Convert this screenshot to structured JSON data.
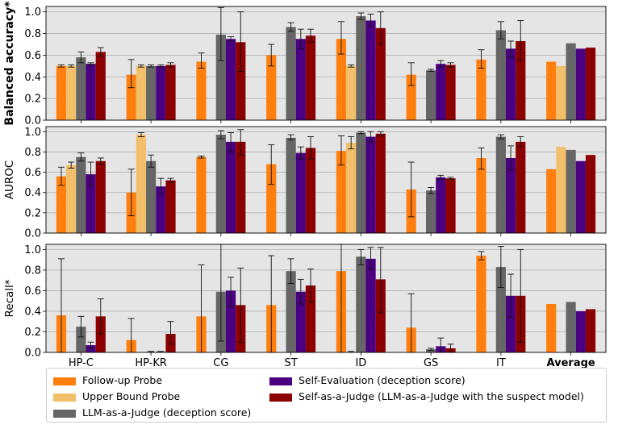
{
  "chart_data": {
    "type": "bar",
    "categories": [
      "HP-C",
      "HP-KR",
      "CG",
      "ST",
      "ID",
      "GS",
      "IT",
      "Average"
    ],
    "series_meta": [
      {
        "name": "Follow-up Probe",
        "color": "#ff7f0e"
      },
      {
        "name": "Upper Bound Probe",
        "color": "#f2c06a"
      },
      {
        "name": "LLM-as-a-Judge (deception score)",
        "color": "#666666"
      },
      {
        "name": "Self-Evaluation (deception score)",
        "color": "#4b0082"
      },
      {
        "name": "Self-as-a-Judge (LLM-as-a-Judge with the suspect model)",
        "color": "#8b0000"
      }
    ],
    "panels": [
      {
        "ylabel": "Balanced accuracy*",
        "ylim": [
          0,
          1.05
        ],
        "yticks": [
          0.0,
          0.2,
          0.4,
          0.6,
          0.8,
          1.0
        ],
        "grid": true,
        "values": [
          [
            0.5,
            0.42,
            0.54,
            0.6,
            0.75,
            0.42,
            0.56,
            0.54
          ],
          [
            0.5,
            0.5,
            null,
            null,
            0.5,
            null,
            null,
            0.5
          ],
          [
            0.58,
            0.5,
            0.79,
            0.86,
            0.96,
            0.46,
            0.83,
            0.71
          ],
          [
            0.52,
            0.5,
            0.75,
            0.75,
            0.92,
            0.52,
            0.66,
            0.66
          ],
          [
            0.63,
            0.51,
            0.72,
            0.78,
            0.85,
            0.51,
            0.73,
            0.67
          ]
        ],
        "errors": [
          [
            [
              0.49,
              0.51
            ],
            [
              0.3,
              0.56
            ],
            [
              0.48,
              0.62
            ],
            [
              0.5,
              0.7
            ],
            [
              0.61,
              0.91
            ],
            [
              0.32,
              0.53
            ],
            [
              0.48,
              0.65
            ],
            null
          ],
          [
            [
              0.49,
              0.51
            ],
            [
              0.49,
              0.51
            ],
            null,
            null,
            [
              0.49,
              0.51
            ],
            null,
            null,
            null
          ],
          [
            [
              0.53,
              0.63
            ],
            [
              0.49,
              0.51
            ],
            [
              0.55,
              1.04
            ],
            [
              0.82,
              0.9
            ],
            [
              0.93,
              0.99
            ],
            [
              0.45,
              0.47
            ],
            [
              0.75,
              0.91
            ],
            null
          ],
          [
            [
              0.51,
              0.53
            ],
            [
              0.49,
              0.51
            ],
            [
              0.73,
              0.77
            ],
            [
              0.66,
              0.84
            ],
            [
              0.87,
              0.98
            ],
            [
              0.49,
              0.55
            ],
            [
              0.58,
              0.73
            ],
            null
          ],
          [
            [
              0.59,
              0.67
            ],
            [
              0.49,
              0.53
            ],
            [
              0.45,
              1.0
            ],
            [
              0.72,
              0.84
            ],
            [
              0.7,
              1.0
            ],
            [
              0.49,
              0.53
            ],
            [
              0.55,
              0.92
            ],
            null
          ]
        ]
      },
      {
        "ylabel": "AUROC",
        "ylim": [
          0,
          1.05
        ],
        "yticks": [
          0.0,
          0.2,
          0.4,
          0.6,
          0.8,
          1.0
        ],
        "grid": true,
        "values": [
          [
            0.56,
            0.4,
            0.75,
            0.68,
            0.81,
            0.43,
            0.74,
            0.63
          ],
          [
            0.67,
            0.97,
            null,
            null,
            0.89,
            null,
            null,
            0.85
          ],
          [
            0.75,
            0.71,
            0.97,
            0.94,
            0.99,
            0.42,
            0.95,
            0.82
          ],
          [
            0.58,
            0.46,
            0.9,
            0.79,
            0.95,
            0.55,
            0.74,
            0.71
          ],
          [
            0.71,
            0.52,
            0.9,
            0.84,
            0.98,
            0.54,
            0.9,
            0.77
          ]
        ],
        "errors": [
          [
            [
              0.47,
              0.65
            ],
            [
              0.17,
              0.63
            ],
            [
              0.74,
              0.76
            ],
            [
              0.48,
              0.87
            ],
            [
              0.67,
              0.96
            ],
            [
              0.16,
              0.7
            ],
            [
              0.63,
              0.84
            ],
            null
          ],
          [
            [
              0.64,
              0.7
            ],
            [
              0.95,
              0.99
            ],
            null,
            null,
            [
              0.83,
              0.95
            ],
            null,
            null,
            null
          ],
          [
            [
              0.71,
              0.79
            ],
            [
              0.65,
              0.77
            ],
            [
              0.93,
              1.01
            ],
            [
              0.92,
              0.97
            ],
            [
              0.98,
              1.0
            ],
            [
              0.39,
              0.45
            ],
            [
              0.93,
              0.97
            ],
            null
          ],
          [
            [
              0.47,
              0.7
            ],
            [
              0.38,
              0.54
            ],
            [
              0.8,
              0.99
            ],
            [
              0.73,
              0.85
            ],
            [
              0.9,
              1.0
            ],
            [
              0.53,
              0.57
            ],
            [
              0.62,
              0.86
            ],
            null
          ],
          [
            [
              0.68,
              0.74
            ],
            [
              0.5,
              0.54
            ],
            [
              0.77,
              1.02
            ],
            [
              0.73,
              0.95
            ],
            [
              0.96,
              1.0
            ],
            [
              0.53,
              0.55
            ],
            [
              0.85,
              0.95
            ],
            null
          ]
        ]
      },
      {
        "ylabel": "Recall*",
        "ylim": [
          0,
          1.05
        ],
        "yticks": [
          0.0,
          0.2,
          0.4,
          0.6,
          0.8,
          1.0
        ],
        "grid": true,
        "values": [
          [
            0.36,
            0.12,
            0.35,
            0.46,
            0.79,
            0.24,
            0.94,
            0.47
          ],
          [
            null,
            0.005,
            null,
            null,
            0.005,
            null,
            null,
            null
          ],
          [
            0.25,
            0.005,
            0.59,
            0.79,
            0.93,
            0.03,
            0.83,
            0.49
          ],
          [
            0.07,
            0.005,
            0.6,
            0.59,
            0.91,
            0.06,
            0.55,
            0.4
          ],
          [
            0.35,
            0.18,
            0.46,
            0.65,
            0.71,
            0.04,
            0.55,
            0.42
          ]
        ],
        "errors": [
          [
            [
              0.0,
              0.91
            ],
            [
              0.0,
              0.33
            ],
            [
              0.0,
              0.85
            ],
            [
              0.0,
              0.94
            ],
            [
              0.0,
              1.05
            ],
            [
              0.0,
              0.57
            ],
            [
              0.9,
              0.98
            ],
            null
          ],
          [
            null,
            null,
            null,
            null,
            [
              0.0,
              0.01
            ],
            null,
            null,
            null
          ],
          [
            [
              0.15,
              0.35
            ],
            [
              0.0,
              0.01
            ],
            [
              0.11,
              1.05
            ],
            [
              0.67,
              0.91
            ],
            [
              0.85,
              1.0
            ],
            [
              0.02,
              0.04
            ],
            [
              0.63,
              1.03
            ],
            null
          ],
          [
            [
              0.04,
              0.1
            ],
            [
              0.0,
              0.01
            ],
            [
              0.45,
              0.73
            ],
            [
              0.47,
              0.71
            ],
            [
              0.81,
              1.02
            ],
            [
              0.0,
              0.14
            ],
            [
              0.34,
              0.76
            ],
            null
          ],
          [
            [
              0.18,
              0.52
            ],
            [
              0.08,
              0.3
            ],
            [
              0.1,
              0.82
            ],
            [
              0.49,
              0.81
            ],
            [
              0.39,
              1.02
            ],
            [
              0.0,
              0.08
            ],
            [
              0.1,
              1.0
            ],
            null
          ]
        ]
      }
    ],
    "bold_category": "Average"
  },
  "legend": {
    "item0": "Follow-up Probe",
    "item1": "Upper Bound Probe",
    "item2": "LLM-as-a-Judge (deception score)",
    "item3": "Self-Evaluation (deception score)",
    "item4": "Self-as-a-Judge (LLM-as-a-Judge with the suspect model)"
  }
}
